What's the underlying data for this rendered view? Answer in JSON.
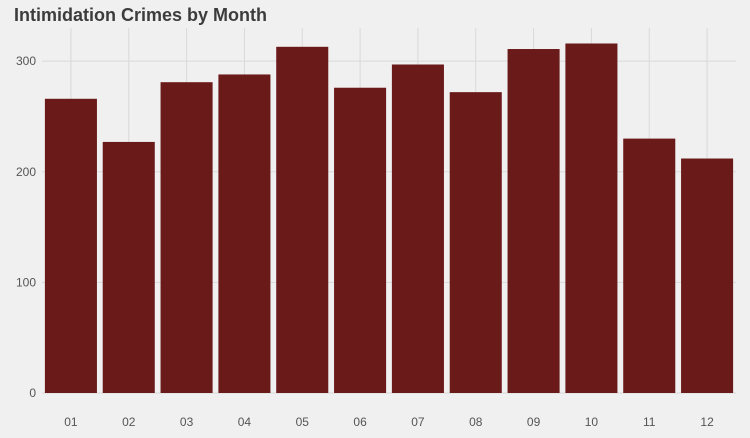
{
  "chart_data": {
    "type": "bar",
    "title": "Intimidation Crimes by Month",
    "xlabel": "",
    "ylabel": "",
    "categories": [
      "01",
      "02",
      "03",
      "04",
      "05",
      "06",
      "07",
      "08",
      "09",
      "10",
      "11",
      "12"
    ],
    "values": [
      266,
      227,
      281,
      288,
      313,
      276,
      297,
      272,
      311,
      316,
      230,
      212
    ],
    "ylim": [
      0,
      330
    ],
    "y_ticks": [
      0,
      100,
      200,
      300
    ],
    "grid": true,
    "legend": "none",
    "colors": {
      "bar": "#6b1a1a",
      "background": "#f0f0f0",
      "grid": "#d9d9d9",
      "tick_text": "#555555",
      "title": "#3c3c3c"
    }
  }
}
